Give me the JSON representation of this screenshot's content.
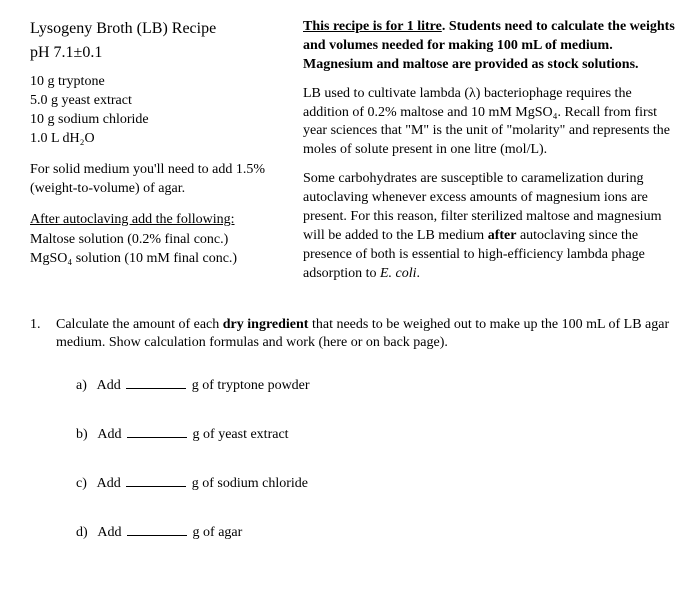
{
  "recipe": {
    "title": "Lysogeny Broth (LB) Recipe",
    "ph": "pH 7.1±0.1",
    "ingredients": [
      "10 g tryptone",
      "5.0 g yeast extract",
      "10 g sodium chloride",
      "1.0 L dH₂O"
    ],
    "solid_note": "For solid medium you'll need to add 1.5% (weight-to-volume) of agar.",
    "after_heading": "After autoclaving add the following:",
    "after_items": [
      "Maltose solution (0.2% final conc.)",
      "MgSO₄ solution (10 mM final conc.)"
    ]
  },
  "notes": {
    "intro_u": "This recipe is for 1 litre",
    "intro_rest": ". Students need to calculate the weights and volumes needed for making 100 mL of medium. Magnesium and maltose are provided as stock solutions.",
    "para2": "LB used to cultivate lambda (λ) bacteriophage requires the addition of 0.2% maltose and 10 mM MgSO₄. Recall from first year sciences that \"M\" is the unit of \"molarity\" and represents the moles of solute present in one litre (mol/L).",
    "para3_a": "Some carbohydrates are susceptible to caramelization during autoclaving whenever excess amounts of magnesium ions are present. For this reason, filter sterilized maltose and magnesium will be added to the LB medium ",
    "para3_bold": "after",
    "para3_b": " autoclaving since the presence of both is essential to high-efficiency lambda phage adsorption to ",
    "para3_ital": "E. coli",
    "para3_end": "."
  },
  "question": {
    "num": "1.",
    "text_a": "Calculate the amount of each ",
    "text_bold": "dry ingredient",
    "text_b": " that needs to be weighed out to make up the 100 mL of LB agar medium. Show calculation formulas and work (here or on back page).",
    "answers": [
      {
        "letter": "a)",
        "prefix": "Add",
        "suffix": "g of tryptone powder"
      },
      {
        "letter": "b)",
        "prefix": "Add",
        "suffix": "g of yeast extract"
      },
      {
        "letter": "c)",
        "prefix": "Add",
        "suffix": "g of sodium chloride"
      },
      {
        "letter": "d)",
        "prefix": "Add",
        "suffix": "g of agar"
      }
    ]
  }
}
